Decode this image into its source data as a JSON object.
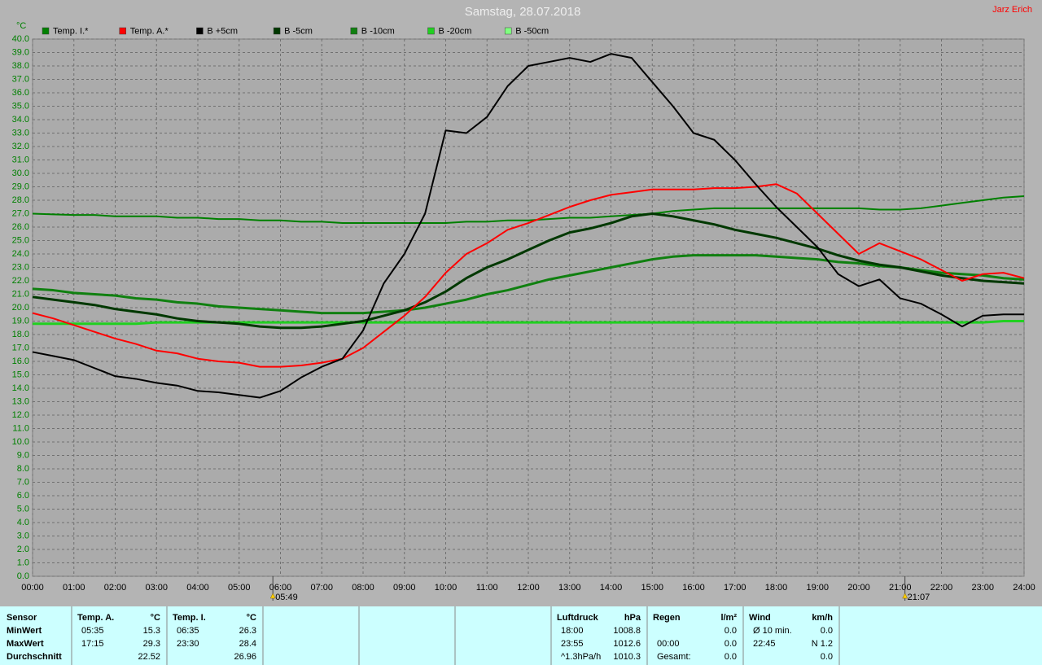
{
  "chart_data": {
    "type": "line",
    "title": "Samstag, 28.07.2018",
    "author": "Jarz Erich",
    "y_unit": "°C",
    "xlim": [
      0,
      24
    ],
    "ylim": [
      0,
      40
    ],
    "grid": true,
    "x": [
      0,
      0.5,
      1,
      1.5,
      2,
      2.5,
      3,
      3.5,
      4,
      4.5,
      5,
      5.5,
      6,
      6.5,
      7,
      7.5,
      8,
      8.5,
      9,
      9.5,
      10,
      10.5,
      11,
      11.5,
      12,
      12.5,
      13,
      13.5,
      14,
      14.5,
      15,
      15.5,
      16,
      16.5,
      17,
      17.5,
      18,
      18.5,
      19,
      19.5,
      20,
      20.5,
      21,
      21.5,
      22,
      22.5,
      23,
      23.5,
      24
    ],
    "xticks": [
      {
        "value": 0,
        "label": "00:00"
      },
      {
        "value": 1,
        "label": "01:00"
      },
      {
        "value": 2,
        "label": "02:00"
      },
      {
        "value": 3,
        "label": "03:00"
      },
      {
        "value": 4,
        "label": "04:00"
      },
      {
        "value": 5,
        "label": "05:00"
      },
      {
        "value": 6,
        "label": "06:00"
      },
      {
        "value": 7,
        "label": "07:00"
      },
      {
        "value": 8,
        "label": "08:00"
      },
      {
        "value": 9,
        "label": "09:00"
      },
      {
        "value": 10,
        "label": "10:00"
      },
      {
        "value": 11,
        "label": "11:00"
      },
      {
        "value": 12,
        "label": "12:00"
      },
      {
        "value": 13,
        "label": "13:00"
      },
      {
        "value": 14,
        "label": "14:00"
      },
      {
        "value": 15,
        "label": "15:00"
      },
      {
        "value": 16,
        "label": "16:00"
      },
      {
        "value": 17,
        "label": "17:00"
      },
      {
        "value": 18,
        "label": "18:00"
      },
      {
        "value": 19,
        "label": "19:00"
      },
      {
        "value": 20,
        "label": "20:00"
      },
      {
        "value": 21,
        "label": "21:00"
      },
      {
        "value": 22,
        "label": "22:00"
      },
      {
        "value": 23,
        "label": "23:00"
      },
      {
        "value": 24,
        "label": "24:00"
      }
    ],
    "yticks": [
      {
        "value": 0,
        "label": "0.0"
      },
      {
        "value": 1,
        "label": "1.0"
      },
      {
        "value": 2,
        "label": "2.0"
      },
      {
        "value": 3,
        "label": "3.0"
      },
      {
        "value": 4,
        "label": "4.0"
      },
      {
        "value": 5,
        "label": "5.0"
      },
      {
        "value": 6,
        "label": "6.0"
      },
      {
        "value": 7,
        "label": "7.0"
      },
      {
        "value": 8,
        "label": "8.0"
      },
      {
        "value": 9,
        "label": "9.0"
      },
      {
        "value": 10,
        "label": "10.0"
      },
      {
        "value": 11,
        "label": "11.0"
      },
      {
        "value": 12,
        "label": "12.0"
      },
      {
        "value": 13,
        "label": "13.0"
      },
      {
        "value": 14,
        "label": "14.0"
      },
      {
        "value": 15,
        "label": "15.0"
      },
      {
        "value": 16,
        "label": "16.0"
      },
      {
        "value": 17,
        "label": "17.0"
      },
      {
        "value": 18,
        "label": "18.0"
      },
      {
        "value": 19,
        "label": "19.0"
      },
      {
        "value": 20,
        "label": "20.0"
      },
      {
        "value": 21,
        "label": "21.0"
      },
      {
        "value": 22,
        "label": "22.0"
      },
      {
        "value": 23,
        "label": "23.0"
      },
      {
        "value": 24,
        "label": "24.0"
      },
      {
        "value": 25,
        "label": "25.0"
      },
      {
        "value": 26,
        "label": "26.0"
      },
      {
        "value": 27,
        "label": "27.0"
      },
      {
        "value": 28,
        "label": "28.0"
      },
      {
        "value": 29,
        "label": "29.0"
      },
      {
        "value": 30,
        "label": "30.0"
      },
      {
        "value": 31,
        "label": "31.0"
      },
      {
        "value": 32,
        "label": "32.0"
      },
      {
        "value": 33,
        "label": "33.0"
      },
      {
        "value": 34,
        "label": "34.0"
      },
      {
        "value": 35,
        "label": "35.0"
      },
      {
        "value": 36,
        "label": "36.0"
      },
      {
        "value": 37,
        "label": "37.0"
      },
      {
        "value": 38,
        "label": "38.0"
      },
      {
        "value": 39,
        "label": "39.0"
      },
      {
        "value": 40,
        "label": "40.0"
      }
    ],
    "annotations": [
      {
        "value": 5.8167,
        "label": "05:49"
      },
      {
        "value": 21.1167,
        "label": "21:07"
      }
    ],
    "series": [
      {
        "name": "Temp. I.*",
        "color": "#008000",
        "width": 2,
        "values": [
          27.0,
          26.95,
          26.9,
          26.9,
          26.8,
          26.8,
          26.8,
          26.7,
          26.7,
          26.6,
          26.6,
          26.5,
          26.5,
          26.4,
          26.4,
          26.3,
          26.3,
          26.3,
          26.3,
          26.3,
          26.3,
          26.4,
          26.4,
          26.5,
          26.5,
          26.6,
          26.7,
          26.7,
          26.8,
          26.9,
          27.0,
          27.2,
          27.3,
          27.4,
          27.4,
          27.4,
          27.4,
          27.4,
          27.4,
          27.4,
          27.4,
          27.3,
          27.3,
          27.4,
          27.6,
          27.8,
          28.0,
          28.2,
          28.3
        ]
      },
      {
        "name": "Temp. A.*",
        "color": "#ff0000",
        "width": 2,
        "values": [
          19.6,
          19.2,
          18.7,
          18.2,
          17.7,
          17.3,
          16.8,
          16.6,
          16.2,
          16.0,
          15.9,
          15.6,
          15.6,
          15.7,
          15.9,
          16.2,
          17.0,
          18.2,
          19.4,
          20.8,
          22.6,
          24.0,
          24.8,
          25.8,
          26.3,
          26.9,
          27.5,
          28.0,
          28.4,
          28.6,
          28.8,
          28.8,
          28.8,
          28.9,
          28.9,
          29.0,
          29.2,
          28.5,
          27.0,
          25.5,
          24.0,
          24.8,
          24.2,
          23.6,
          22.8,
          22.0,
          22.5,
          22.6,
          22.2
        ]
      },
      {
        "name": "B +5cm",
        "color": "#000000",
        "width": 2,
        "values": [
          16.7,
          16.4,
          16.1,
          15.5,
          14.9,
          14.7,
          14.4,
          14.2,
          13.8,
          13.7,
          13.5,
          13.3,
          13.8,
          14.8,
          15.6,
          16.2,
          18.3,
          21.8,
          24.0,
          27.0,
          33.2,
          33.0,
          34.2,
          36.5,
          38.0,
          38.3,
          38.6,
          38.3,
          38.9,
          38.6,
          36.8,
          35.0,
          33.0,
          32.5,
          31.0,
          29.2,
          27.5,
          26.0,
          24.5,
          22.5,
          21.6,
          22.1,
          20.7,
          20.3,
          19.5,
          18.6,
          19.4,
          19.5,
          19.5
        ]
      },
      {
        "name": "B -5cm",
        "color": "#003800",
        "width": 3,
        "values": [
          20.8,
          20.6,
          20.4,
          20.2,
          19.9,
          19.7,
          19.5,
          19.2,
          19.0,
          18.9,
          18.8,
          18.6,
          18.5,
          18.5,
          18.6,
          18.8,
          19.0,
          19.4,
          19.8,
          20.4,
          21.2,
          22.2,
          23.0,
          23.6,
          24.3,
          25.0,
          25.6,
          25.9,
          26.3,
          26.8,
          27.0,
          26.8,
          26.5,
          26.2,
          25.8,
          25.5,
          25.2,
          24.8,
          24.4,
          23.9,
          23.5,
          23.2,
          23.0,
          22.7,
          22.4,
          22.2,
          22.0,
          21.9,
          21.8
        ]
      },
      {
        "name": "B -10cm",
        "color": "#108010",
        "width": 3,
        "values": [
          21.4,
          21.3,
          21.1,
          21.0,
          20.9,
          20.7,
          20.6,
          20.4,
          20.3,
          20.1,
          20.0,
          19.9,
          19.8,
          19.7,
          19.6,
          19.6,
          19.6,
          19.7,
          19.8,
          20.0,
          20.3,
          20.6,
          21.0,
          21.3,
          21.7,
          22.1,
          22.4,
          22.7,
          23.0,
          23.3,
          23.6,
          23.8,
          23.9,
          23.9,
          23.9,
          23.9,
          23.8,
          23.7,
          23.6,
          23.4,
          23.3,
          23.1,
          23.0,
          22.8,
          22.6,
          22.5,
          22.4,
          22.2,
          22.1
        ]
      },
      {
        "name": "B -20cm",
        "color": "#20d020",
        "width": 3,
        "values": [
          18.8,
          18.8,
          18.8,
          18.8,
          18.8,
          18.8,
          18.9,
          18.9,
          18.9,
          18.9,
          18.9,
          18.9,
          18.9,
          18.9,
          18.9,
          18.9,
          18.9,
          18.9,
          18.9,
          18.9,
          18.9,
          18.9,
          18.9,
          18.9,
          18.9,
          18.9,
          18.9,
          18.9,
          18.9,
          18.9,
          18.9,
          18.9,
          18.9,
          18.9,
          18.9,
          18.9,
          18.9,
          18.9,
          18.9,
          18.9,
          18.9,
          18.9,
          18.9,
          18.9,
          18.9,
          18.9,
          18.9,
          19.0,
          19.0
        ]
      },
      {
        "name": "B -50cm",
        "color": "#80ff80",
        "width": 2,
        "values": [
          null,
          null,
          null,
          null,
          null,
          null,
          null,
          null,
          null,
          null,
          null,
          null,
          null,
          null,
          null,
          null,
          null,
          null,
          null,
          null,
          null,
          null,
          null,
          null,
          null,
          null,
          null,
          null,
          null,
          null,
          null,
          null,
          null,
          null,
          null,
          null,
          null,
          null,
          null,
          null,
          null,
          null,
          null,
          null,
          null,
          null,
          null,
          null,
          null
        ]
      }
    ]
  },
  "table": {
    "sections": [
      {
        "header": [
          "Sensor"
        ],
        "rows": [
          [
            "MinWert"
          ],
          [
            "MaxWert"
          ],
          [
            "Durchschnitt"
          ]
        ]
      },
      {
        "header": [
          "Temp. A.",
          "°C"
        ],
        "rows": [
          [
            "05:35",
            "15.3"
          ],
          [
            "17:15",
            "29.3"
          ],
          [
            null,
            "22.52"
          ]
        ]
      },
      {
        "header": [
          "Temp. I.",
          "°C"
        ],
        "rows": [
          [
            "06:35",
            "26.3"
          ],
          [
            "23:30",
            "28.4"
          ],
          [
            null,
            "26.96"
          ]
        ]
      },
      {
        "header": [
          "Luftdruck",
          "hPa"
        ],
        "rows": [
          [
            "18:00",
            "1008.8"
          ],
          [
            "23:55",
            "1012.6"
          ],
          [
            "^1.3hPa/h",
            "1010.3"
          ]
        ]
      },
      {
        "header": [
          "Regen",
          "l/m²"
        ],
        "rows": [
          [
            null,
            "0.0"
          ],
          [
            "00:00",
            "0.0"
          ],
          [
            "Gesamt:",
            "0.0"
          ]
        ]
      },
      {
        "header": [
          "Wind",
          "km/h"
        ],
        "rows": [
          [
            "Ø 10 min.",
            "0.0"
          ],
          [
            "22:45",
            "N 1.2"
          ],
          [
            null,
            "0.0"
          ]
        ]
      }
    ]
  }
}
